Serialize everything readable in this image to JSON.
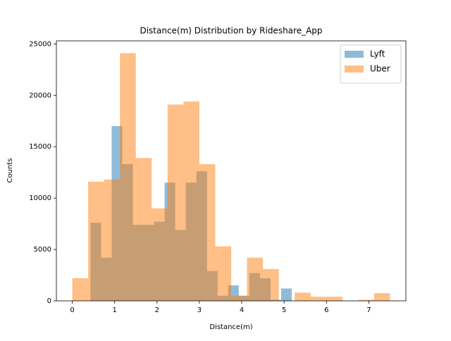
{
  "chart_data": {
    "type": "histogram",
    "title": "Distance(m) Distribution by Rideshare_App",
    "x_label": "Distance(m)",
    "y_label": "Counts",
    "xlim": [
      -0.375,
      7.875
    ],
    "ylim": [
      0,
      25300
    ],
    "xticks": [
      0,
      1,
      2,
      3,
      4,
      5,
      6,
      7
    ],
    "yticks": [
      0,
      5000,
      10000,
      15000,
      20000,
      25000
    ],
    "legend": "upper right",
    "alpha": 0.5,
    "series": [
      {
        "name": "Lyft",
        "color": "#1f77b4",
        "bins": [
          0.43,
          0.68,
          0.93,
          1.18,
          1.43,
          1.68,
          1.93,
          2.18,
          2.43,
          2.68,
          2.93,
          3.18,
          3.43,
          3.68,
          3.93,
          4.18,
          4.43,
          4.68,
          4.93,
          5.18,
          5.43
        ],
        "values": [
          7600,
          4200,
          17000,
          13300,
          7400,
          7400,
          7700,
          11500,
          6900,
          11500,
          12600,
          2900,
          500,
          1500,
          500,
          2700,
          2200,
          100,
          1200,
          0
        ]
      },
      {
        "name": "Uber",
        "color": "#ff7f0e",
        "bins": [
          0,
          0.375,
          0.75,
          1.125,
          1.5,
          1.875,
          2.25,
          2.625,
          3.0,
          3.375,
          3.75,
          4.125,
          4.5,
          4.875,
          5.25,
          5.625,
          6.0,
          6.375,
          6.75,
          7.125,
          7.5
        ],
        "values": [
          2200,
          11600,
          11800,
          24100,
          13900,
          9000,
          19100,
          19400,
          13300,
          5300,
          500,
          4200,
          3100,
          0,
          800,
          400,
          400,
          0,
          100,
          750
        ]
      }
    ]
  }
}
